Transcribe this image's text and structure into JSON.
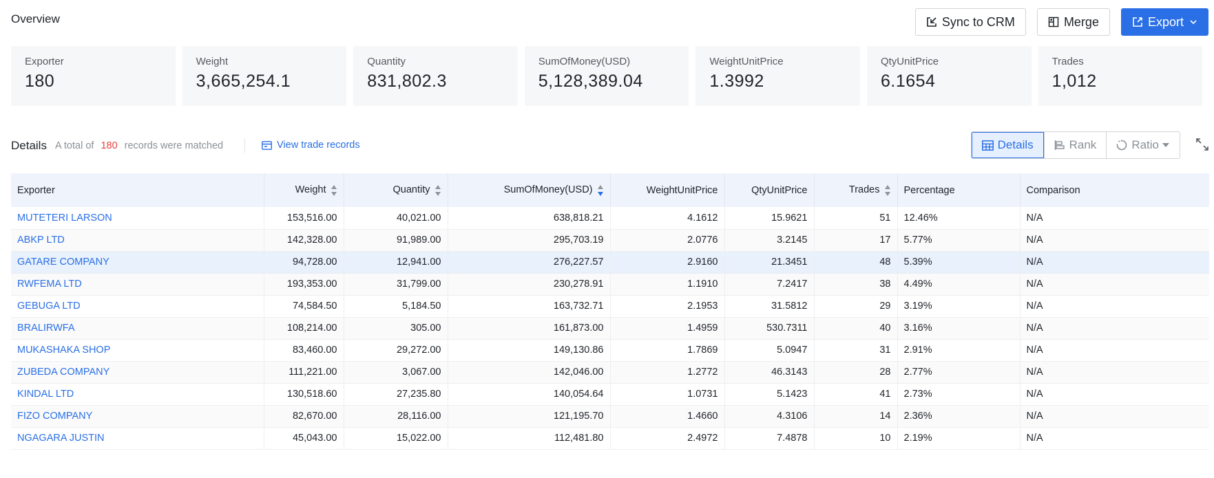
{
  "header": {
    "title": "Overview",
    "sync_label": "Sync to CRM",
    "merge_label": "Merge",
    "export_label": "Export"
  },
  "stats": [
    {
      "label": "Exporter",
      "value": "180"
    },
    {
      "label": "Weight",
      "value": "3,665,254.1"
    },
    {
      "label": "Quantity",
      "value": "831,802.3"
    },
    {
      "label": "SumOfMoney(USD)",
      "value": "5,128,389.04"
    },
    {
      "label": "WeightUnitPrice",
      "value": "1.3992"
    },
    {
      "label": "QtyUnitPrice",
      "value": "6.1654"
    },
    {
      "label": "Trades",
      "value": "1,012"
    }
  ],
  "details": {
    "title": "Details",
    "prefix": "A total of",
    "count": "180",
    "suffix": "records were matched",
    "view_link": "View trade records",
    "views": [
      "Details",
      "Rank",
      "Ratio"
    ],
    "active_view": "Details"
  },
  "table": {
    "columns": [
      "Exporter",
      "Weight",
      "Quantity",
      "SumOfMoney(USD)",
      "WeightUnitPrice",
      "QtyUnitPrice",
      "Trades",
      "Percentage",
      "Comparison"
    ],
    "rows": [
      [
        "MUTETERI LARSON",
        "153,516.00",
        "40,021.00",
        "638,818.21",
        "4.1612",
        "15.9621",
        "51",
        "12.46%",
        "N/A"
      ],
      [
        "ABKP LTD",
        "142,328.00",
        "91,989.00",
        "295,703.19",
        "2.0776",
        "3.2145",
        "17",
        "5.77%",
        "N/A"
      ],
      [
        "GATARE COMPANY",
        "94,728.00",
        "12,941.00",
        "276,227.57",
        "2.9160",
        "21.3451",
        "48",
        "5.39%",
        "N/A"
      ],
      [
        "RWFEMA LTD",
        "193,353.00",
        "31,799.00",
        "230,278.91",
        "1.1910",
        "7.2417",
        "38",
        "4.49%",
        "N/A"
      ],
      [
        "GEBUGA LTD",
        "74,584.50",
        "5,184.50",
        "163,732.71",
        "2.1953",
        "31.5812",
        "29",
        "3.19%",
        "N/A"
      ],
      [
        "BRALIRWFA",
        "108,214.00",
        "305.00",
        "161,873.00",
        "1.4959",
        "530.7311",
        "40",
        "3.16%",
        "N/A"
      ],
      [
        "MUKASHAKA SHOP",
        "83,460.00",
        "29,272.00",
        "149,130.86",
        "1.7869",
        "5.0947",
        "31",
        "2.91%",
        "N/A"
      ],
      [
        "ZUBEDA COMPANY",
        "111,221.00",
        "3,067.00",
        "142,046.00",
        "1.2772",
        "46.3143",
        "28",
        "2.77%",
        "N/A"
      ],
      [
        "KINDAL LTD",
        "130,518.60",
        "27,235.80",
        "140,054.64",
        "1.0731",
        "5.1423",
        "41",
        "2.73%",
        "N/A"
      ],
      [
        "FIZO COMPANY",
        "82,670.00",
        "28,116.00",
        "121,195.70",
        "1.4660",
        "4.3106",
        "14",
        "2.36%",
        "N/A"
      ],
      [
        "NGAGARA JUSTIN",
        "45,043.00",
        "15,022.00",
        "112,481.80",
        "2.4972",
        "7.4878",
        "10",
        "2.19%",
        "N/A"
      ]
    ]
  },
  "colors": {
    "accent": "#2a6fe6",
    "count": "#e5413c",
    "highlight_row": "#e8f1fc"
  }
}
